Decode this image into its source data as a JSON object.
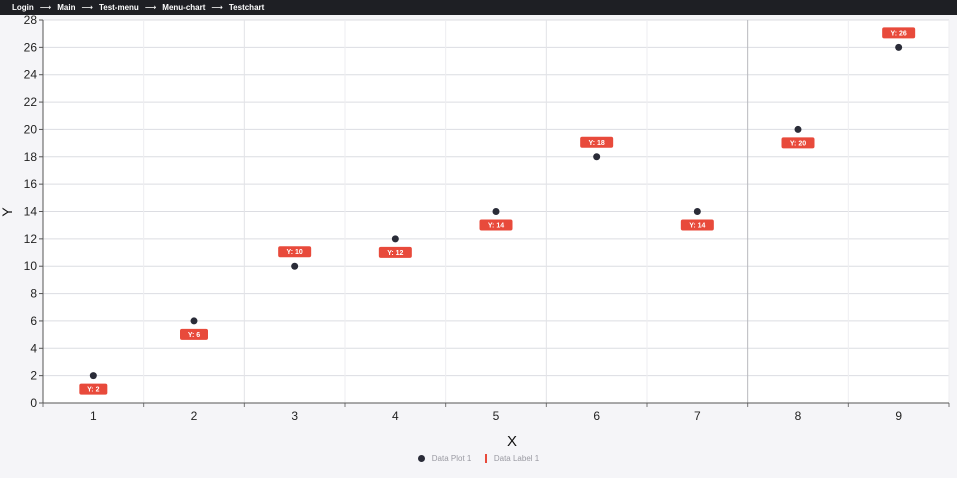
{
  "breadcrumb": {
    "items": [
      "Login",
      "Main",
      "Test-menu",
      "Menu-chart",
      "Testchart"
    ],
    "separator": "⟶"
  },
  "colors": {
    "point": "#2a2c38",
    "label_bg": "#e84a3b",
    "label_text": "#ffffff",
    "grid": "#dcdde2",
    "plot_bg": "#ffffff"
  },
  "chart_data": {
    "type": "scatter",
    "xlabel": "X",
    "ylabel": "Y",
    "xlim": [
      0.5,
      9.5
    ],
    "ylim": [
      0,
      28
    ],
    "x_ticks": [
      1,
      2,
      3,
      4,
      5,
      6,
      7,
      8,
      9
    ],
    "y_ticks": [
      0,
      2,
      4,
      6,
      8,
      10,
      12,
      14,
      16,
      18,
      20,
      22,
      24,
      26,
      28
    ],
    "grid": true,
    "legend_position": "bottom",
    "series": [
      {
        "name": "Data Plot 1",
        "x": [
          1,
          2,
          3,
          4,
          5,
          6,
          7,
          8,
          9
        ],
        "y": [
          2,
          6,
          10,
          12,
          14,
          18,
          14,
          20,
          26
        ]
      }
    ],
    "data_labels": {
      "name": "Data Label 1",
      "texts": [
        "Y: 2",
        "Y: 6",
        "Y: 10",
        "Y: 12",
        "Y: 14",
        "Y: 18",
        "Y: 14",
        "Y: 20",
        "Y: 26"
      ],
      "placement": [
        "below",
        "below",
        "above",
        "below",
        "below",
        "above",
        "below",
        "below",
        "above"
      ]
    }
  }
}
